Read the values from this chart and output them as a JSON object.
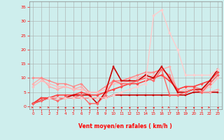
{
  "xlabel": "Vent moyen/en rafales ( km/h )",
  "background_color": "#ceeeed",
  "grid_color": "#aaaaaa",
  "ylim": [
    -1,
    37
  ],
  "xlim": [
    -0.5,
    23.5
  ],
  "yticks": [
    0,
    5,
    10,
    15,
    20,
    25,
    30,
    35
  ],
  "xticks": [
    0,
    1,
    2,
    3,
    4,
    5,
    6,
    7,
    8,
    9,
    10,
    11,
    12,
    13,
    14,
    15,
    16,
    17,
    18,
    19,
    20,
    21,
    22,
    23
  ],
  "series": [
    {
      "x": [
        0,
        1,
        2,
        3,
        4,
        5,
        6,
        7,
        8,
        9,
        10,
        11,
        12,
        13,
        14,
        15,
        16,
        17,
        18,
        19,
        20,
        21,
        22,
        23
      ],
      "y": [
        1,
        3,
        3,
        3,
        3,
        3,
        3,
        3,
        3,
        3,
        4,
        4,
        4,
        4,
        4,
        4,
        4,
        4,
        4,
        4,
        5,
        5,
        5,
        5
      ],
      "color": "#cc0000",
      "lw": 1.2,
      "marker": "s",
      "ms": 1.8
    },
    {
      "x": [
        0,
        1,
        2,
        3,
        4,
        5,
        6,
        7,
        8,
        9,
        10,
        11,
        12,
        13,
        14,
        15,
        16,
        17,
        18,
        19,
        20,
        21,
        22,
        23
      ],
      "y": [
        8,
        10,
        7,
        6,
        7,
        6,
        7,
        4,
        1,
        5,
        9,
        9,
        10,
        10,
        11,
        12,
        13,
        14,
        5,
        6,
        6,
        5,
        5,
        6
      ],
      "color": "#ffaaaa",
      "lw": 1.0,
      "marker": "D",
      "ms": 1.8
    },
    {
      "x": [
        0,
        1,
        2,
        3,
        4,
        5,
        6,
        7,
        8,
        9,
        10,
        11,
        12,
        13,
        14,
        15,
        16,
        17,
        18,
        19,
        20,
        21,
        22,
        23
      ],
      "y": [
        10,
        10,
        9,
        8,
        8,
        7,
        8,
        5,
        5,
        7,
        9,
        9,
        10,
        11,
        12,
        12,
        13,
        11,
        6,
        7,
        7,
        6,
        8,
        11
      ],
      "color": "#ff8888",
      "lw": 1.0,
      "marker": "D",
      "ms": 1.8
    },
    {
      "x": [
        0,
        1,
        2,
        3,
        4,
        5,
        6,
        7,
        8,
        9,
        10,
        11,
        12,
        13,
        14,
        15,
        16,
        17,
        18,
        19,
        20,
        21,
        22,
        23
      ],
      "y": [
        7,
        9,
        8,
        7,
        7,
        6,
        6,
        5,
        5,
        6,
        8,
        8,
        9,
        9,
        10,
        11,
        11,
        10,
        5,
        6,
        6,
        5,
        7,
        10
      ],
      "color": "#ffbbbb",
      "lw": 1.0,
      "marker": "D",
      "ms": 1.8
    },
    {
      "x": [
        0,
        1,
        2,
        3,
        4,
        5,
        6,
        7,
        8,
        9,
        10,
        11,
        12,
        13,
        14,
        15,
        16,
        17,
        18,
        19,
        20,
        21,
        22,
        23
      ],
      "y": [
        1,
        3,
        3,
        4,
        4,
        4,
        5,
        4,
        4,
        5,
        6,
        7,
        8,
        8,
        9,
        10,
        11,
        9,
        6,
        7,
        7,
        8,
        9,
        12
      ],
      "color": "#ff4444",
      "lw": 1.2,
      "marker": "D",
      "ms": 1.8
    },
    {
      "x": [
        0,
        1,
        2,
        3,
        4,
        5,
        6,
        7,
        8,
        9,
        10,
        11,
        12,
        13,
        14,
        15,
        16,
        17,
        18,
        19,
        20,
        21,
        22,
        23
      ],
      "y": [
        1,
        2,
        3,
        3,
        3,
        4,
        4,
        4,
        1,
        5,
        14,
        9,
        9,
        9,
        11,
        10,
        14,
        10,
        5,
        5,
        6,
        6,
        9,
        13
      ],
      "color": "#cc0000",
      "lw": 1.2,
      "marker": "s",
      "ms": 2.0
    },
    {
      "x": [
        0,
        1,
        2,
        3,
        4,
        5,
        6,
        7,
        8,
        9,
        10,
        11,
        12,
        13,
        14,
        15,
        16,
        17,
        18,
        19,
        20,
        21,
        22,
        23
      ],
      "y": [
        1,
        2,
        3,
        2,
        3,
        3,
        4,
        1,
        1,
        4,
        9,
        8,
        8,
        9,
        10,
        9,
        13,
        4,
        4,
        5,
        6,
        5,
        8,
        11
      ],
      "color": "#ff6666",
      "lw": 1.0,
      "marker": "D",
      "ms": 1.8
    },
    {
      "x": [
        2,
        3,
        4,
        5,
        6,
        7,
        8,
        9,
        10,
        11,
        12,
        13,
        14,
        15,
        16,
        17,
        18,
        19,
        20,
        21,
        22,
        23
      ],
      "y": [
        3,
        3,
        3,
        3,
        3,
        3,
        3,
        3,
        4,
        5,
        6,
        7,
        8,
        32,
        34,
        26,
        20,
        11,
        11,
        11,
        11,
        13
      ],
      "color": "#ffcccc",
      "lw": 1.0,
      "marker": "D",
      "ms": 2.0
    }
  ],
  "wind_arrows_x": [
    0,
    1,
    2,
    3,
    4,
    5,
    6,
    7,
    8,
    9,
    10,
    11,
    12,
    13,
    14,
    15,
    16,
    17,
    18,
    19,
    20,
    21,
    22,
    23
  ],
  "wind_dirs": [
    45,
    45,
    45,
    315,
    270,
    270,
    270,
    270,
    270,
    270,
    270,
    270,
    270,
    270,
    270,
    270,
    315,
    45,
    45,
    270,
    270,
    270,
    45,
    270
  ]
}
